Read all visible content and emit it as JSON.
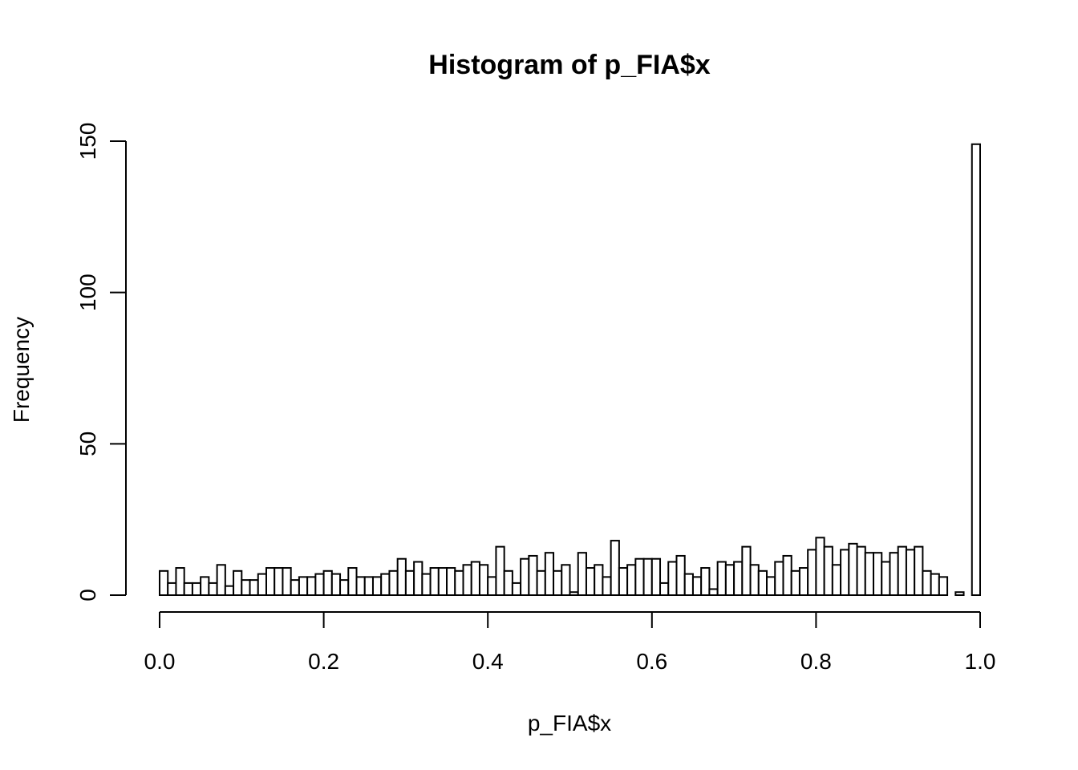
{
  "chart_data": {
    "type": "bar",
    "title": "Histogram of p_FIA$x",
    "xlabel": "p_FIA$x",
    "ylabel": "Frequency",
    "xlim": [
      0,
      1
    ],
    "ylim": [
      0,
      150
    ],
    "x_ticks": [
      0.0,
      0.2,
      0.4,
      0.6,
      0.8,
      1.0
    ],
    "x_tick_labels": [
      "0.0",
      "0.2",
      "0.4",
      "0.6",
      "0.8",
      "1.0"
    ],
    "y_ticks": [
      0,
      50,
      100,
      150
    ],
    "y_tick_labels": [
      "0",
      "50",
      "100",
      "150"
    ],
    "bin_width": 0.01,
    "bin_starts": [
      0.0,
      0.01,
      0.02,
      0.03,
      0.04,
      0.05,
      0.06,
      0.07,
      0.08,
      0.09,
      0.1,
      0.11,
      0.12,
      0.13,
      0.14,
      0.15,
      0.16,
      0.17,
      0.18,
      0.19,
      0.2,
      0.21,
      0.22,
      0.23,
      0.24,
      0.25,
      0.26,
      0.27,
      0.28,
      0.29,
      0.3,
      0.31,
      0.32,
      0.33,
      0.34,
      0.35,
      0.36,
      0.37,
      0.38,
      0.39,
      0.4,
      0.41,
      0.42,
      0.43,
      0.44,
      0.45,
      0.46,
      0.47,
      0.48,
      0.49,
      0.5,
      0.51,
      0.52,
      0.53,
      0.54,
      0.55,
      0.56,
      0.57,
      0.58,
      0.59,
      0.6,
      0.61,
      0.62,
      0.63,
      0.64,
      0.65,
      0.66,
      0.67,
      0.68,
      0.69,
      0.7,
      0.71,
      0.72,
      0.73,
      0.74,
      0.75,
      0.76,
      0.77,
      0.78,
      0.79,
      0.8,
      0.81,
      0.82,
      0.83,
      0.84,
      0.85,
      0.86,
      0.87,
      0.88,
      0.89,
      0.9,
      0.91,
      0.92,
      0.93,
      0.94,
      0.95,
      0.96,
      0.97,
      0.98,
      0.99
    ],
    "values": [
      8,
      4,
      9,
      4,
      4,
      6,
      4,
      10,
      3,
      8,
      5,
      5,
      7,
      9,
      9,
      9,
      5,
      6,
      6,
      7,
      8,
      7,
      5,
      9,
      6,
      6,
      6,
      7,
      8,
      12,
      8,
      11,
      7,
      9,
      9,
      9,
      8,
      10,
      11,
      10,
      6,
      16,
      8,
      4,
      12,
      13,
      8,
      14,
      8,
      10,
      1,
      14,
      9,
      10,
      6,
      18,
      9,
      10,
      12,
      12,
      12,
      4,
      11,
      13,
      7,
      6,
      9,
      2,
      11,
      10,
      11,
      16,
      10,
      8,
      6,
      11,
      13,
      8,
      9,
      15,
      19,
      16,
      10,
      15,
      17,
      16,
      14,
      14,
      11,
      14,
      16,
      15,
      16,
      8,
      7,
      6,
      0,
      1,
      0,
      149
    ]
  }
}
